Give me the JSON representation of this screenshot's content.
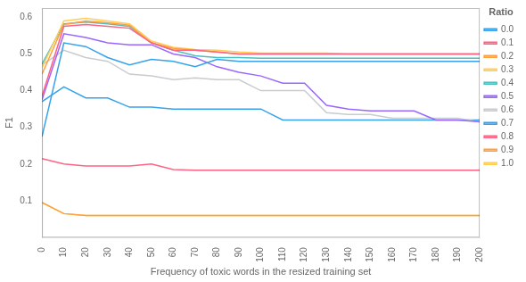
{
  "chart_data": {
    "type": "line",
    "xlabel": "Frequency of toxic words in the resized training set",
    "ylabel": "F1",
    "legend_title": "Ratio",
    "legend": "right",
    "grid": false,
    "marker": "none",
    "x": [
      0,
      10,
      20,
      30,
      40,
      50,
      60,
      70,
      80,
      90,
      100,
      110,
      120,
      130,
      140,
      150,
      160,
      170,
      180,
      190,
      200
    ],
    "xlim": [
      0,
      200
    ],
    "xticks": [
      0,
      10,
      20,
      30,
      40,
      50,
      60,
      70,
      80,
      90,
      100,
      110,
      120,
      130,
      140,
      150,
      160,
      170,
      180,
      190,
      200
    ],
    "ylim": [
      0.0,
      0.625
    ],
    "yticks": [
      0.1,
      0.2,
      0.3,
      0.4,
      0.5,
      0.6
    ],
    "series": [
      {
        "name": "0.0",
        "values": [
          0.275,
          0.53,
          0.52,
          0.49,
          0.47,
          0.485,
          0.48,
          0.465,
          0.485,
          0.48,
          0.48,
          0.48,
          0.48,
          0.48,
          0.48,
          0.48,
          0.48,
          0.48,
          0.48,
          0.48,
          0.48
        ]
      },
      {
        "name": "0.1",
        "values": [
          0.385,
          0.575,
          0.58,
          0.575,
          0.57,
          0.53,
          0.51,
          0.51,
          0.505,
          0.5,
          0.5,
          0.5,
          0.5,
          0.5,
          0.5,
          0.5,
          0.5,
          0.5,
          0.5,
          0.5,
          0.5
        ]
      },
      {
        "name": "0.2",
        "values": [
          0.445,
          0.58,
          0.59,
          0.585,
          0.578,
          0.53,
          0.515,
          0.51,
          0.505,
          0.5,
          0.5,
          0.5,
          0.5,
          0.5,
          0.5,
          0.5,
          0.5,
          0.5,
          0.5,
          0.5,
          0.5
        ]
      },
      {
        "name": "0.3",
        "values": [
          0.462,
          0.59,
          0.597,
          0.59,
          0.582,
          0.535,
          0.518,
          0.512,
          0.51,
          0.505,
          0.502,
          0.502,
          0.502,
          0.502,
          0.5,
          0.5,
          0.5,
          0.5,
          0.5,
          0.5,
          0.5
        ]
      },
      {
        "name": "0.4",
        "values": [
          0.472,
          0.582,
          0.587,
          0.582,
          0.575,
          0.53,
          0.51,
          0.495,
          0.49,
          0.49,
          0.488,
          0.488,
          0.488,
          0.488,
          0.488,
          0.488,
          0.488,
          0.488,
          0.488,
          0.488,
          0.488
        ]
      },
      {
        "name": "0.5",
        "values": [
          0.375,
          0.555,
          0.545,
          0.53,
          0.525,
          0.525,
          0.5,
          0.49,
          0.465,
          0.45,
          0.44,
          0.42,
          0.42,
          0.36,
          0.35,
          0.345,
          0.345,
          0.345,
          0.32,
          0.32,
          0.315
        ]
      },
      {
        "name": "0.6",
        "values": [
          0.47,
          0.51,
          0.49,
          0.48,
          0.445,
          0.44,
          0.43,
          0.435,
          0.43,
          0.43,
          0.4,
          0.4,
          0.4,
          0.34,
          0.335,
          0.335,
          0.325,
          0.325,
          0.325,
          0.325,
          0.315
        ]
      },
      {
        "name": "0.7",
        "values": [
          0.37,
          0.41,
          0.38,
          0.38,
          0.355,
          0.355,
          0.35,
          0.35,
          0.35,
          0.35,
          0.35,
          0.32,
          0.32,
          0.32,
          0.32,
          0.32,
          0.32,
          0.32,
          0.32,
          0.32,
          0.32
        ]
      },
      {
        "name": "0.8",
        "values": [
          0.215,
          0.2,
          0.195,
          0.195,
          0.195,
          0.2,
          0.185,
          0.183,
          0.183,
          0.183,
          0.183,
          0.183,
          0.183,
          0.183,
          0.183,
          0.183,
          0.183,
          0.183,
          0.183,
          0.183,
          0.183
        ]
      },
      {
        "name": "0.9",
        "values": [
          0.095,
          0.065,
          0.06,
          0.06,
          0.06,
          0.06,
          0.06,
          0.06,
          0.06,
          0.06,
          0.06,
          0.06,
          0.06,
          0.06,
          0.06,
          0.06,
          0.06,
          0.06,
          0.06,
          0.06,
          0.06
        ]
      },
      {
        "name": "1.0",
        "values": [
          0.095,
          0.065,
          0.06,
          0.06,
          0.06,
          0.06,
          0.06,
          0.06,
          0.06,
          0.06,
          0.06,
          0.06,
          0.06,
          0.06,
          0.06,
          0.06,
          0.06,
          0.06,
          0.06,
          0.06,
          0.06
        ]
      }
    ]
  }
}
